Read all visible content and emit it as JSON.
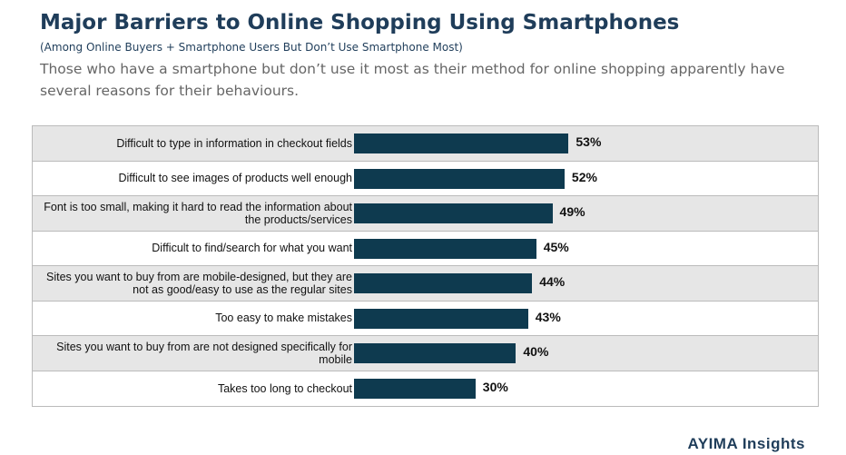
{
  "chart_data": {
    "type": "bar",
    "title": "Major Barriers to Online Shopping Using Smartphones",
    "subtitle": "(Among Online Buyers + Smartphone Users But Don’t Use Smartphone Most)",
    "description": "Those who have a smartphone but don’t use it most as their method for online shopping apparently have several reasons for their behaviours.",
    "categories": [
      "Difficult to type in information in checkout fields",
      "Difficult to see images of products well enough",
      "Font is too small, making it hard to read the information about the products/services",
      "Difficult to find/search for what you want",
      "Sites you want to buy from are mobile-designed, but they are not as good/easy to use as the regular sites",
      "Too easy to make mistakes",
      "Sites you want to buy from are not designed specifically for mobile",
      "Takes too long to checkout"
    ],
    "values": [
      53,
      52,
      49,
      45,
      44,
      43,
      40,
      30
    ],
    "value_labels": [
      "53%",
      "52%",
      "49%",
      "45%",
      "44%",
      "43%",
      "40%",
      "30%"
    ],
    "color": "#0e3a4f",
    "logo": "AYIMA Insights"
  }
}
